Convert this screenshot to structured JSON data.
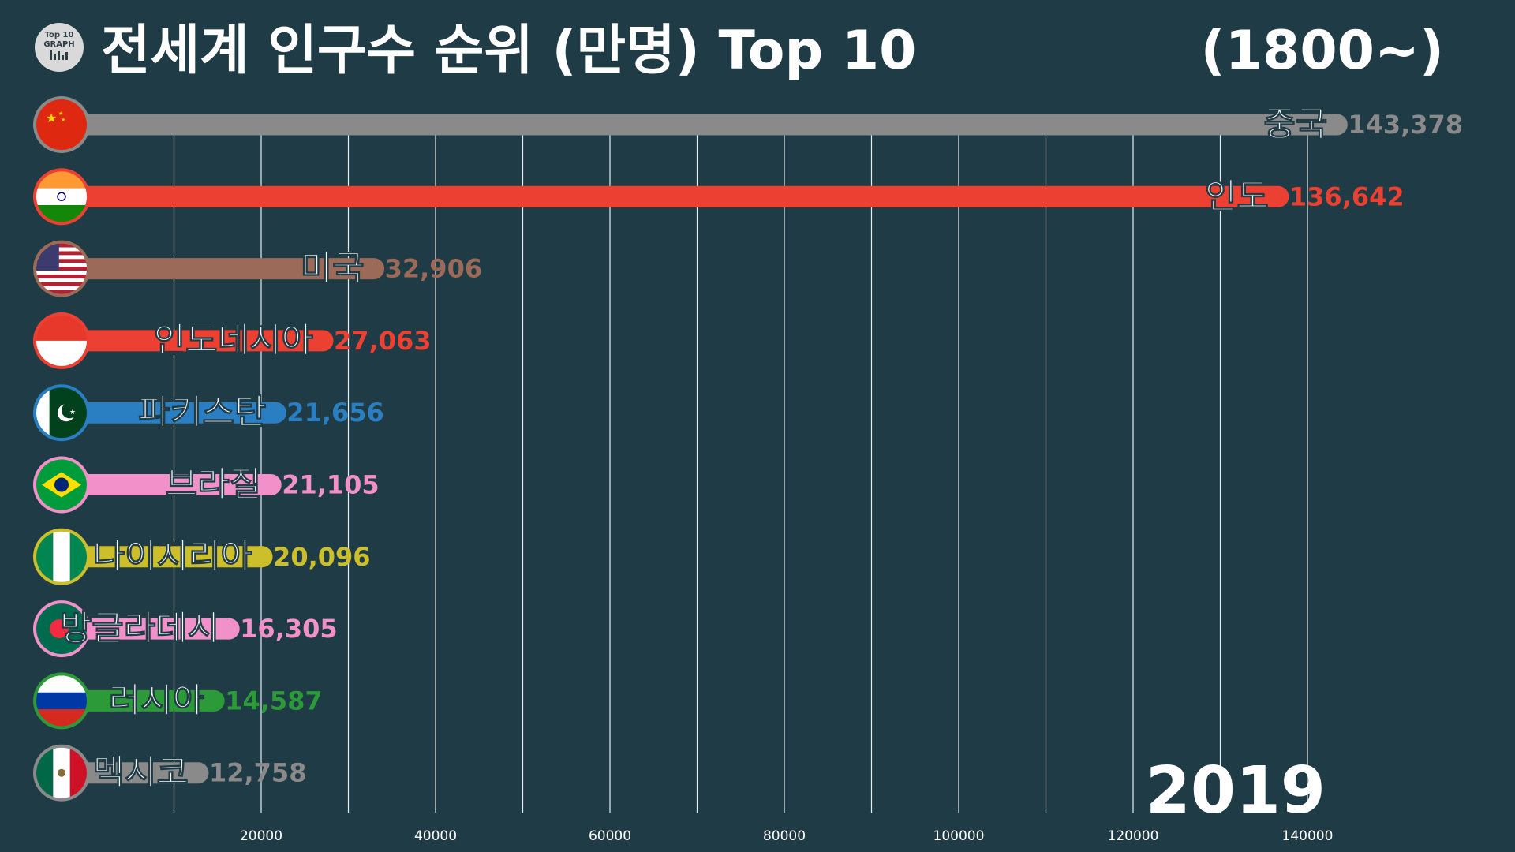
{
  "header": {
    "title": "전세계 인구수 순위 (만명) Top 10",
    "period": "(1800~)",
    "logo_line1": "Top 10",
    "logo_line2": "GRAPH"
  },
  "year": "2019",
  "chart_data": {
    "type": "bar",
    "title": "전세계 인구수 순위 (만명) Top 10",
    "orientation": "horizontal",
    "xlim": [
      0,
      140000
    ],
    "grid": true,
    "x_ticks": [
      20000,
      40000,
      60000,
      80000,
      100000,
      120000,
      140000
    ],
    "x_tick_labels": [
      "20000",
      "40000",
      "60000",
      "80000",
      "100000",
      "120000",
      "140000"
    ],
    "categories": [
      "중국",
      "인도",
      "미국",
      "인도네시아",
      "파키스탄",
      "브라질",
      "나이지리아",
      "방글라데시",
      "러시아",
      "멕시코"
    ],
    "values": [
      143378,
      136642,
      32906,
      27063,
      21656,
      21105,
      20096,
      16305,
      14587,
      12758
    ],
    "value_labels": [
      "143,378",
      "136,642",
      "32,906",
      "27,063",
      "21,656",
      "21,105",
      "20,096",
      "16,305",
      "14,587",
      "12,758"
    ],
    "colors": [
      "#8a8a8a",
      "#ec4132",
      "#9b6a58",
      "#ec4132",
      "#2a7fc2",
      "#f291c9",
      "#cdbf2c",
      "#f291c9",
      "#2d9a39",
      "#8a8a8a"
    ],
    "flag_icons": [
      "china-flag-icon",
      "india-flag-icon",
      "usa-flag-icon",
      "indonesia-flag-icon",
      "pakistan-flag-icon",
      "brazil-flag-icon",
      "nigeria-flag-icon",
      "bangladesh-flag-icon",
      "russia-flag-icon",
      "mexico-flag-icon"
    ]
  }
}
